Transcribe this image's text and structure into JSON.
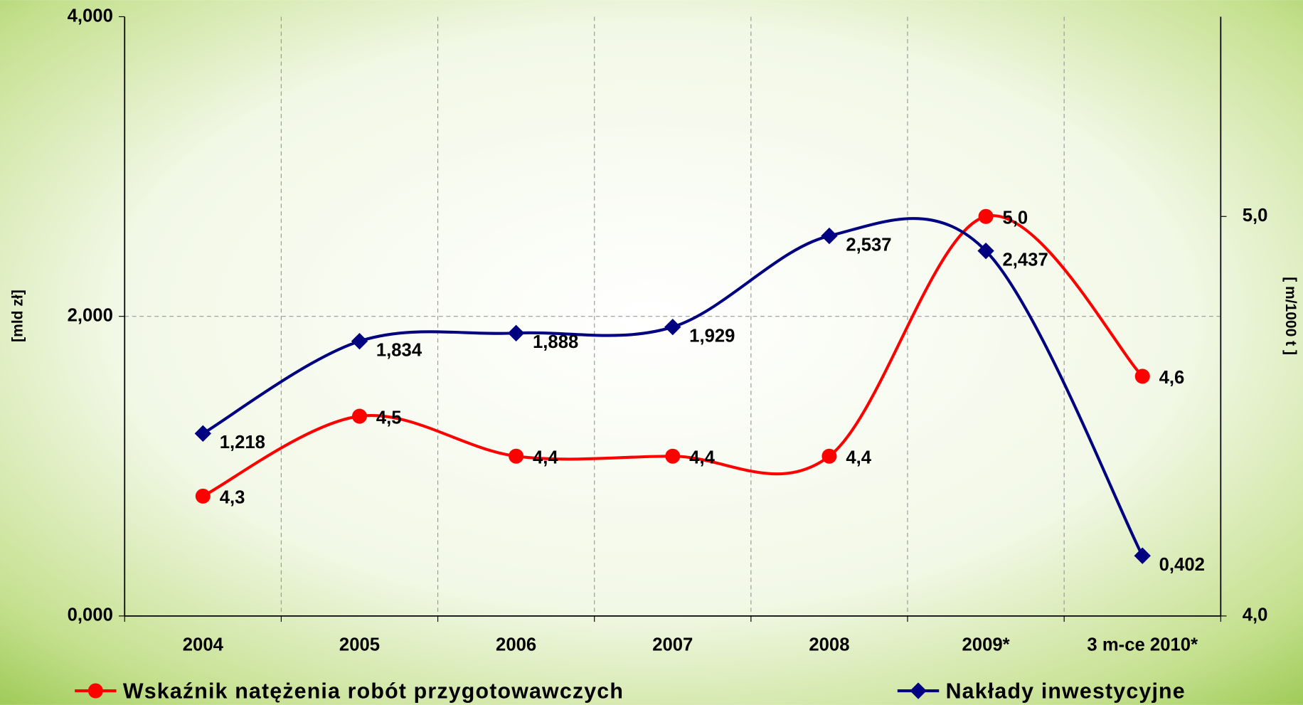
{
  "chart_data": {
    "type": "line",
    "categories": [
      "2004",
      "2005",
      "2006",
      "2007",
      "2008",
      "2009*",
      "3 m-ce 2010*"
    ],
    "ylabel": "[mld zł]",
    "y2label": "[ m/1000 t ]",
    "ylim": [
      0,
      4
    ],
    "yticks": [
      {
        "value": 0,
        "label": "0,000"
      },
      {
        "value": 2,
        "label": "2,000"
      },
      {
        "value": 4,
        "label": "4,000"
      }
    ],
    "y2lim": [
      4,
      5.5
    ],
    "y2ticks": [
      {
        "value": 4,
        "label": "4,0"
      },
      {
        "value": 5,
        "label": "5,0"
      }
    ],
    "grid": true,
    "smooth": true,
    "legend": "bottom",
    "series": [
      {
        "name": "Wskaźnik natężenia robót przygotowawczych",
        "color": "#ff0000",
        "marker": "circle",
        "axis": "y2",
        "values": [
          4.3,
          4.5,
          4.4,
          4.4,
          4.4,
          5.0,
          4.6
        ],
        "value_labels": [
          "4,3",
          "4,5",
          "4,4",
          "4,4",
          "4,4",
          "5,0",
          "4,6"
        ]
      },
      {
        "name": "Nakłady inwestycyjne",
        "color": "#000080",
        "marker": "diamond",
        "values": [
          1.218,
          1.834,
          1.888,
          1.929,
          2.537,
          2.437,
          0.402
        ],
        "value_labels": [
          "1,218",
          "1,834",
          "1,888",
          "1,929",
          "2,537",
          "2,437",
          "0,402"
        ]
      }
    ]
  }
}
